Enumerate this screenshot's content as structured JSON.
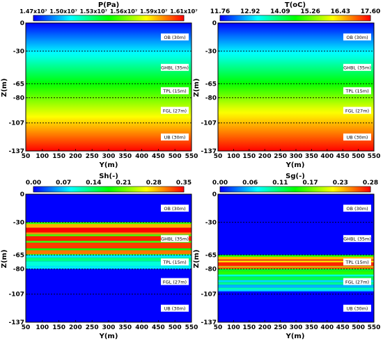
{
  "colormap": [
    "#0000ff",
    "#0080ff",
    "#00ffff",
    "#00ff80",
    "#00ff00",
    "#80ff00",
    "#ffff00",
    "#ff8000",
    "#ff0000"
  ],
  "chart_data": [
    {
      "type": "heatmap",
      "variable": "P(Pa)",
      "xlabel": "Y(m)",
      "ylabel": "Z(m)",
      "xlim": [
        50,
        550
      ],
      "ylim": [
        -137,
        0
      ],
      "x_ticks": [
        "50",
        "100",
        "150",
        "200",
        "250",
        "300",
        "350",
        "400",
        "450",
        "500",
        "550"
      ],
      "y_ticks": [
        "0",
        "-30",
        "-65",
        "-80",
        "-107",
        "-137"
      ],
      "colorbar_range": [
        14700000,
        16100000
      ],
      "colorbar_ticks": [
        "1.47x10⁷",
        "1.50x10⁷",
        "1.53x10⁷",
        "1.56x10⁷",
        "1.59x10⁷",
        "1.61x10⁷"
      ],
      "layers": [
        {
          "label": "OB (30m)",
          "top": 0,
          "bottom": -30
        },
        {
          "label": "GHBL (35m)",
          "top": -30,
          "bottom": -65
        },
        {
          "label": "TPL (15m)",
          "top": -65,
          "bottom": -80
        },
        {
          "label": "FGL (27m)",
          "top": -80,
          "bottom": -107
        },
        {
          "label": "UB (30m)",
          "top": -107,
          "bottom": -137
        }
      ],
      "profile": [
        {
          "z": 0,
          "value": 14700000
        },
        {
          "z": -65,
          "value": 15400000
        },
        {
          "z": -90,
          "value": 15650000
        },
        {
          "z": -137,
          "value": 16100000
        }
      ]
    },
    {
      "type": "heatmap",
      "variable": "T(oC)",
      "xlabel": "Y(m)",
      "ylabel": "Z(m)",
      "xlim": [
        50,
        550
      ],
      "ylim": [
        -137,
        0
      ],
      "x_ticks": [
        "50",
        "100",
        "150",
        "200",
        "250",
        "300",
        "350",
        "400",
        "450",
        "500",
        "550"
      ],
      "y_ticks": [
        "0",
        "-30",
        "-65",
        "-80",
        "-107",
        "-137"
      ],
      "colorbar_range": [
        11.76,
        17.6
      ],
      "colorbar_ticks": [
        "11.76",
        "12.92",
        "14.09",
        "15.26",
        "16.43",
        "17.60"
      ],
      "layers": [
        {
          "label": "OB (30m)",
          "top": 0,
          "bottom": -30
        },
        {
          "label": "GHBL (35m)",
          "top": -30,
          "bottom": -65
        },
        {
          "label": "TPL (15m)",
          "top": -65,
          "bottom": -80
        },
        {
          "label": "FGL (27m)",
          "top": -80,
          "bottom": -107
        },
        {
          "label": "UB (30m)",
          "top": -107,
          "bottom": -137
        }
      ],
      "profile": [
        {
          "z": 0,
          "value": 11.76
        },
        {
          "z": -65,
          "value": 14.7
        },
        {
          "z": -90,
          "value": 15.9
        },
        {
          "z": -137,
          "value": 17.6
        }
      ]
    },
    {
      "type": "heatmap",
      "variable": "Sh(-)",
      "xlabel": "Y(m)",
      "ylabel": "Z(m)",
      "xlim": [
        50,
        550
      ],
      "ylim": [
        -137,
        0
      ],
      "x_ticks": [
        "50",
        "100",
        "150",
        "200",
        "250",
        "300",
        "350",
        "400",
        "450",
        "500",
        "550"
      ],
      "y_ticks": [
        "0",
        "-30",
        "-65",
        "-80",
        "-107",
        "-137"
      ],
      "colorbar_range": [
        0,
        0.35
      ],
      "colorbar_ticks": [
        "0.00",
        "0.07",
        "0.14",
        "0.21",
        "0.28",
        "0.35"
      ],
      "layers": [
        {
          "label": "OB (30m)",
          "top": 0,
          "bottom": -30
        },
        {
          "label": "GHBL (35m)",
          "top": -30,
          "bottom": -65
        },
        {
          "label": "TPL (15m)",
          "top": -65,
          "bottom": -80
        },
        {
          "label": "FGL (27m)",
          "top": -80,
          "bottom": -107
        },
        {
          "label": "UB (30m)",
          "top": -107,
          "bottom": -137
        }
      ],
      "background": 0,
      "bands": [
        {
          "top": -30,
          "bottom": -32,
          "value": 0.2
        },
        {
          "top": -32,
          "bottom": -36,
          "value": 0.29
        },
        {
          "top": -36,
          "bottom": -41,
          "value": 0.35
        },
        {
          "top": -41,
          "bottom": -43,
          "value": 0.3
        },
        {
          "top": -43,
          "bottom": -45,
          "value": 0.2
        },
        {
          "top": -45,
          "bottom": -50,
          "value": 0.34
        },
        {
          "top": -50,
          "bottom": -52,
          "value": 0.2
        },
        {
          "top": -52,
          "bottom": -58,
          "value": 0.33
        },
        {
          "top": -58,
          "bottom": -60,
          "value": 0.18
        },
        {
          "top": -60,
          "bottom": -64,
          "value": 0.31
        },
        {
          "top": -64,
          "bottom": -65,
          "value": 0.21
        },
        {
          "top": -65,
          "bottom": -68,
          "value": 0.08
        },
        {
          "top": -68,
          "bottom": -72,
          "value": 0.13
        },
        {
          "top": -72,
          "bottom": -77,
          "value": 0.1
        },
        {
          "top": -77,
          "bottom": -80,
          "value": 0.08
        }
      ]
    },
    {
      "type": "heatmap",
      "variable": "Sg(-)",
      "xlabel": "Y(m)",
      "ylabel": "Z(m)",
      "xlim": [
        50,
        550
      ],
      "ylim": [
        -137,
        0
      ],
      "x_ticks": [
        "50",
        "100",
        "150",
        "200",
        "250",
        "300",
        "350",
        "400",
        "450",
        "500",
        "550"
      ],
      "y_ticks": [
        "0",
        "-30",
        "-65",
        "-80",
        "-107",
        "-137"
      ],
      "colorbar_range": [
        0,
        0.28
      ],
      "colorbar_ticks": [
        "0.00",
        "0.06",
        "0.11",
        "0.17",
        "0.23",
        "0.28"
      ],
      "layers": [
        {
          "label": "OB (30m)",
          "top": 0,
          "bottom": -30
        },
        {
          "label": "GHBL (35m)",
          "top": -30,
          "bottom": -65
        },
        {
          "label": "TPL (15m)",
          "top": -65,
          "bottom": -80
        },
        {
          "label": "FGL (27m)",
          "top": -80,
          "bottom": -107
        },
        {
          "label": "UB (30m)",
          "top": -107,
          "bottom": -137
        }
      ],
      "background": 0,
      "bands": [
        {
          "top": -65,
          "bottom": -67,
          "value": 0.15
        },
        {
          "top": -67,
          "bottom": -70,
          "value": 0.23
        },
        {
          "top": -70,
          "bottom": -71,
          "value": 0.28
        },
        {
          "top": -71,
          "bottom": -73,
          "value": 0.22
        },
        {
          "top": -73,
          "bottom": -77,
          "value": 0.27
        },
        {
          "top": -77,
          "bottom": -78,
          "value": 0.2
        },
        {
          "top": -78,
          "bottom": -80,
          "value": 0.25
        },
        {
          "top": -80,
          "bottom": -82,
          "value": 0.13
        },
        {
          "top": -82,
          "bottom": -86,
          "value": 0.15
        },
        {
          "top": -86,
          "bottom": -88,
          "value": 0.08
        },
        {
          "top": -88,
          "bottom": -92,
          "value": 0.12
        },
        {
          "top": -92,
          "bottom": -94,
          "value": 0.06
        },
        {
          "top": -94,
          "bottom": -97,
          "value": 0.1
        },
        {
          "top": -97,
          "bottom": -100,
          "value": 0.05
        },
        {
          "top": -100,
          "bottom": -102,
          "value": 0.09
        },
        {
          "top": -102,
          "bottom": -104,
          "value": 0.06
        }
      ]
    }
  ]
}
